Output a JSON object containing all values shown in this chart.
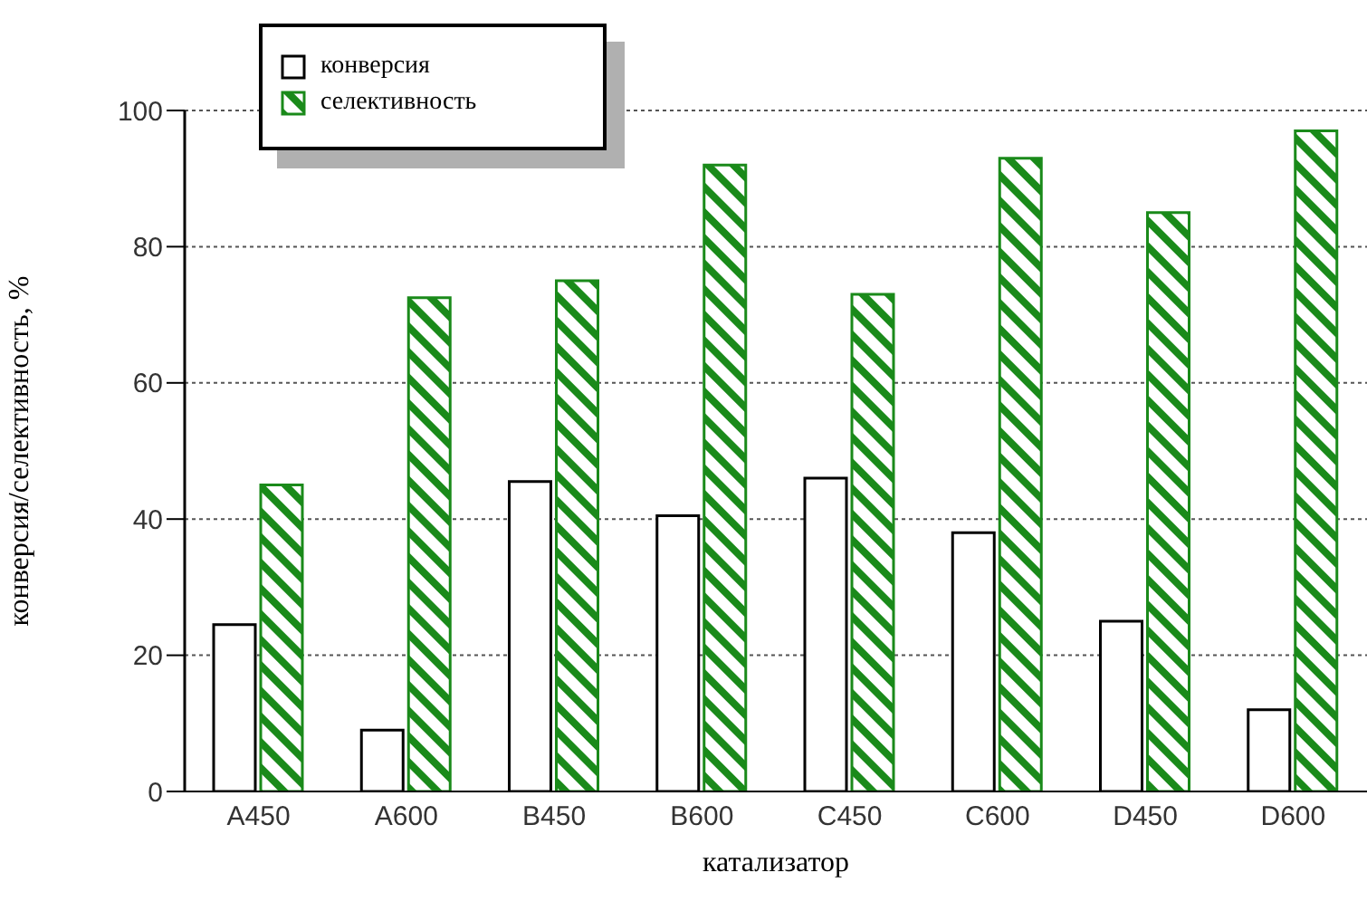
{
  "chart_data": {
    "type": "bar",
    "xlabel": "катализатор",
    "ylabel": "конверсия/селективность, %",
    "categories": [
      "A450",
      "A600",
      "B450",
      "B600",
      "C450",
      "C600",
      "D450",
      "D600"
    ],
    "series": [
      {
        "name": "конверсия",
        "color": "#000000",
        "values": [
          24.5,
          9,
          45.5,
          40.5,
          46,
          38,
          25,
          12
        ]
      },
      {
        "name": "селективность",
        "color": "#1a8a1a",
        "values": [
          45,
          72.5,
          75,
          92,
          73,
          93,
          85,
          97
        ]
      }
    ],
    "ylim": [
      0,
      100
    ],
    "yticks": [
      0,
      20,
      40,
      60,
      80,
      100
    ],
    "grid": "y",
    "legend": "top left"
  }
}
